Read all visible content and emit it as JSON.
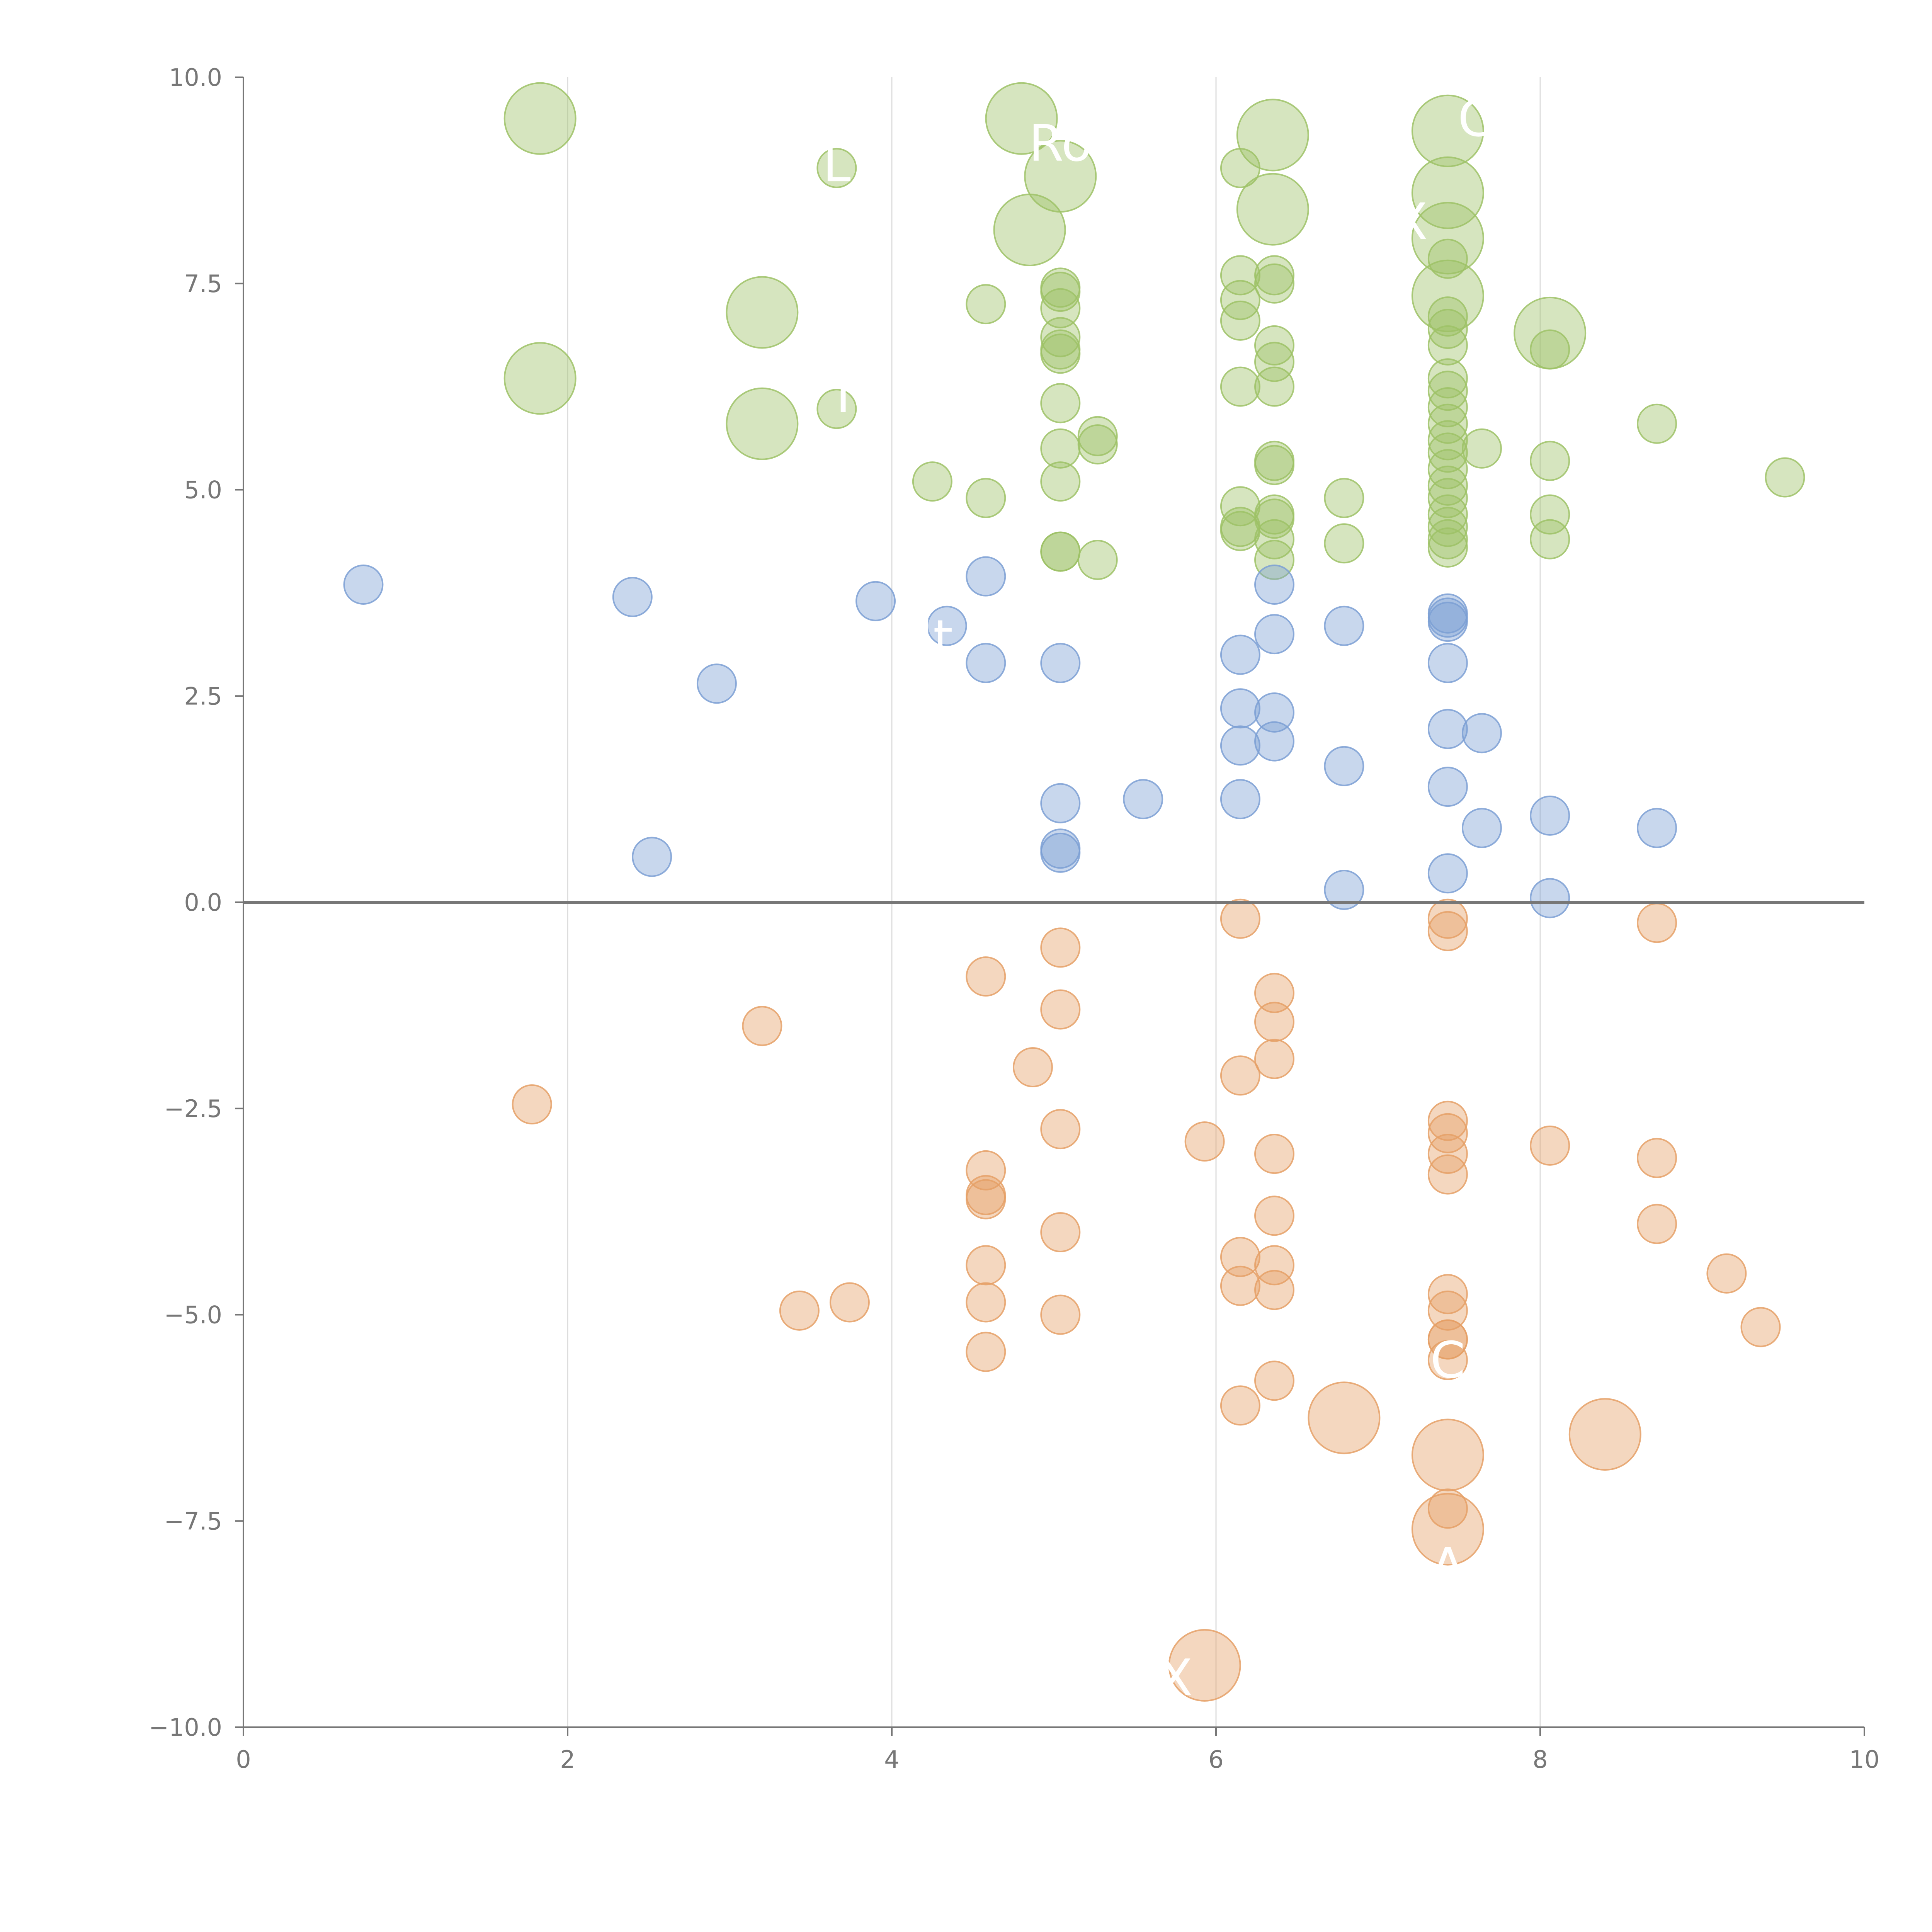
{
  "chart_data": {
    "type": "scatter",
    "title": "",
    "xlabel": "",
    "ylabel": "",
    "xlim": [
      0,
      10
    ],
    "ylim": [
      -10,
      10
    ],
    "x_ticks": [
      0,
      2,
      4,
      6,
      8,
      10
    ],
    "y_ticks": [
      -10,
      -7.5,
      -5,
      -2.5,
      0,
      2.5,
      5,
      7.5,
      10
    ],
    "x_tick_labels": [
      "0",
      "2",
      "4",
      "6",
      "8",
      "10"
    ],
    "y_tick_labels": [
      "−10.0",
      "−7.5",
      "−5.0",
      "−2.5",
      "0.0",
      "2.5",
      "5.0",
      "7.5",
      "10.0"
    ],
    "vertical_grid_x": [
      2,
      4,
      6,
      8
    ],
    "zero_line_y": 0,
    "colors": {
      "green": "#9dc266",
      "blue": "#7b9fd3",
      "orange": "#e5a066",
      "axis": "#777777",
      "grid": "#dddddd"
    },
    "series": [
      {
        "name": "green",
        "color": "#9dc266",
        "points": [
          [
            1.83,
            9.5,
            3
          ],
          [
            4.8,
            9.5,
            3
          ],
          [
            6.35,
            9.3,
            3
          ],
          [
            7.43,
            9.35,
            3
          ],
          [
            3.66,
            8.9,
            1
          ],
          [
            5.04,
            8.8,
            3
          ],
          [
            6.15,
            8.9,
            1
          ],
          [
            7.43,
            8.6,
            3
          ],
          [
            4.85,
            8.15,
            3
          ],
          [
            6.35,
            8.4,
            3
          ],
          [
            7.43,
            8.05,
            3
          ],
          [
            7.43,
            7.8,
            1
          ],
          [
            3.2,
            7.15,
            3
          ],
          [
            4.58,
            7.25,
            1
          ],
          [
            5.04,
            7.45,
            1
          ],
          [
            5.04,
            7.4,
            1
          ],
          [
            5.04,
            7.2,
            1
          ],
          [
            6.15,
            7.6,
            1
          ],
          [
            6.15,
            7.3,
            1
          ],
          [
            6.15,
            7.05,
            1
          ],
          [
            6.36,
            7.6,
            1
          ],
          [
            6.36,
            7.5,
            1
          ],
          [
            7.43,
            7.35,
            3
          ],
          [
            7.43,
            7.1,
            1
          ],
          [
            7.43,
            6.95,
            1
          ],
          [
            7.43,
            6.75,
            1
          ],
          [
            8.06,
            6.9,
            3
          ],
          [
            8.06,
            6.7,
            1
          ],
          [
            1.83,
            6.35,
            3
          ],
          [
            3.66,
            5.98,
            1
          ],
          [
            5.04,
            6.85,
            1
          ],
          [
            5.04,
            6.7,
            1
          ],
          [
            5.04,
            6.65,
            1
          ],
          [
            6.36,
            6.75,
            1
          ],
          [
            6.36,
            6.55,
            1
          ],
          [
            6.36,
            6.25,
            1
          ],
          [
            6.15,
            6.25,
            1
          ],
          [
            3.2,
            5.8,
            3
          ],
          [
            5.04,
            6.05,
            1
          ],
          [
            5.27,
            5.65,
            1
          ],
          [
            5.27,
            5.55,
            1
          ],
          [
            5.04,
            5.5,
            1
          ],
          [
            7.43,
            6.35,
            1
          ],
          [
            7.43,
            6.2,
            1
          ],
          [
            7.43,
            6.0,
            1
          ],
          [
            7.43,
            5.8,
            1
          ],
          [
            7.43,
            5.6,
            1
          ],
          [
            7.43,
            5.45,
            1
          ],
          [
            7.43,
            5.25,
            1
          ],
          [
            7.43,
            5.05,
            1
          ],
          [
            7.43,
            4.9,
            1
          ],
          [
            7.43,
            4.7,
            1
          ],
          [
            7.43,
            4.55,
            1
          ],
          [
            7.43,
            4.4,
            1
          ],
          [
            7.43,
            4.3,
            1
          ],
          [
            7.64,
            5.5,
            1
          ],
          [
            8.06,
            5.35,
            1
          ],
          [
            8.06,
            4.7,
            1
          ],
          [
            8.06,
            4.4,
            1
          ],
          [
            8.72,
            5.8,
            1
          ],
          [
            9.51,
            5.15,
            1
          ],
          [
            4.25,
            5.1,
            1
          ],
          [
            4.58,
            4.9,
            1
          ],
          [
            5.04,
            5.1,
            1
          ],
          [
            5.04,
            4.25,
            1
          ],
          [
            5.04,
            4.25,
            1
          ],
          [
            5.27,
            4.15,
            1
          ],
          [
            6.15,
            4.8,
            1
          ],
          [
            6.15,
            4.55,
            1
          ],
          [
            6.15,
            4.5,
            1
          ],
          [
            6.36,
            5.35,
            1
          ],
          [
            6.36,
            5.3,
            1
          ],
          [
            6.36,
            4.7,
            1
          ],
          [
            6.36,
            4.65,
            1
          ],
          [
            6.36,
            4.4,
            1
          ],
          [
            6.36,
            4.15,
            1
          ],
          [
            6.79,
            4.9,
            1
          ],
          [
            6.79,
            4.35,
            1
          ]
        ]
      },
      {
        "name": "blue",
        "color": "#7b9fd3",
        "points": [
          [
            0.74,
            3.85,
            1
          ],
          [
            2.4,
            3.7,
            1
          ],
          [
            3.9,
            3.65,
            1
          ],
          [
            4.58,
            3.95,
            1
          ],
          [
            4.34,
            3.35,
            1
          ],
          [
            4.58,
            2.9,
            1
          ],
          [
            5.04,
            2.9,
            1
          ],
          [
            2.92,
            2.65,
            1
          ],
          [
            6.15,
            3.0,
            1
          ],
          [
            6.36,
            3.85,
            1
          ],
          [
            6.36,
            3.25,
            1
          ],
          [
            6.79,
            3.35,
            1
          ],
          [
            7.43,
            3.5,
            1
          ],
          [
            7.43,
            3.45,
            1
          ],
          [
            7.43,
            3.4,
            1
          ],
          [
            7.43,
            2.9,
            1
          ],
          [
            6.15,
            2.35,
            1
          ],
          [
            6.36,
            2.3,
            1
          ],
          [
            6.15,
            1.9,
            1
          ],
          [
            6.36,
            1.95,
            1
          ],
          [
            7.43,
            2.1,
            1
          ],
          [
            7.64,
            2.05,
            1
          ],
          [
            6.79,
            1.65,
            1
          ],
          [
            5.04,
            1.2,
            1
          ],
          [
            5.55,
            1.25,
            1
          ],
          [
            6.15,
            1.25,
            1
          ],
          [
            7.43,
            1.4,
            1
          ],
          [
            7.64,
            0.9,
            1
          ],
          [
            8.06,
            1.05,
            1
          ],
          [
            8.72,
            0.9,
            1
          ],
          [
            2.52,
            0.55,
            1
          ],
          [
            5.04,
            0.65,
            1
          ],
          [
            5.04,
            0.6,
            1
          ],
          [
            7.43,
            0.35,
            1
          ],
          [
            6.79,
            0.15,
            1
          ],
          [
            8.06,
            0.05,
            1
          ]
        ]
      },
      {
        "name": "orange",
        "color": "#e5a066",
        "points": [
          [
            6.15,
            -0.2,
            1
          ],
          [
            7.43,
            -0.2,
            1
          ],
          [
            7.43,
            -0.35,
            1
          ],
          [
            8.72,
            -0.25,
            1
          ],
          [
            5.04,
            -0.55,
            1
          ],
          [
            4.58,
            -0.9,
            1
          ],
          [
            6.36,
            -1.1,
            1
          ],
          [
            3.2,
            -1.5,
            1
          ],
          [
            5.04,
            -1.3,
            1
          ],
          [
            6.36,
            -1.45,
            1
          ],
          [
            4.87,
            -2.0,
            1
          ],
          [
            6.15,
            -2.1,
            1
          ],
          [
            6.36,
            -1.9,
            1
          ],
          [
            1.78,
            -2.45,
            1
          ],
          [
            5.04,
            -2.75,
            1
          ],
          [
            5.93,
            -2.9,
            1
          ],
          [
            6.36,
            -3.05,
            1
          ],
          [
            7.43,
            -2.65,
            1
          ],
          [
            7.43,
            -2.8,
            1
          ],
          [
            7.43,
            -3.05,
            1
          ],
          [
            7.43,
            -3.3,
            1
          ],
          [
            8.06,
            -2.95,
            1
          ],
          [
            8.72,
            -3.1,
            1
          ],
          [
            4.58,
            -3.25,
            1
          ],
          [
            4.58,
            -3.55,
            1
          ],
          [
            4.58,
            -3.6,
            1
          ],
          [
            6.36,
            -3.8,
            1
          ],
          [
            5.04,
            -4.0,
            1
          ],
          [
            8.72,
            -3.9,
            1
          ],
          [
            4.58,
            -4.4,
            1
          ],
          [
            6.15,
            -4.3,
            1
          ],
          [
            6.36,
            -4.4,
            1
          ],
          [
            6.15,
            -4.65,
            1
          ],
          [
            6.36,
            -4.7,
            1
          ],
          [
            7.43,
            -4.75,
            1
          ],
          [
            7.43,
            -4.95,
            1
          ],
          [
            9.15,
            -4.5,
            1
          ],
          [
            3.43,
            -4.95,
            1
          ],
          [
            3.74,
            -4.85,
            1
          ],
          [
            4.58,
            -4.85,
            1
          ],
          [
            5.04,
            -5.0,
            1
          ],
          [
            9.36,
            -5.15,
            1
          ],
          [
            7.43,
            -5.3,
            1
          ],
          [
            7.43,
            -5.3,
            1
          ],
          [
            7.43,
            -5.55,
            1
          ],
          [
            4.58,
            -5.45,
            1
          ],
          [
            6.36,
            -5.8,
            1
          ],
          [
            6.15,
            -6.1,
            1
          ],
          [
            6.79,
            -6.25,
            3
          ],
          [
            7.43,
            -6.7,
            3
          ],
          [
            8.4,
            -6.45,
            3
          ],
          [
            7.43,
            -7.35,
            1
          ],
          [
            7.43,
            -7.6,
            3
          ],
          [
            5.93,
            -9.25,
            3
          ]
        ]
      }
    ],
    "labels": [
      {
        "text": "L",
        "x": 3.66,
        "y": 8.95
      },
      {
        "text": "Ro",
        "x": 5.04,
        "y": 9.2
      },
      {
        "text": "C",
        "x": 7.6,
        "y": 9.5
      },
      {
        "text": "X",
        "x": 7.2,
        "y": 8.25
      },
      {
        "text": "I",
        "x": 3.7,
        "y": 6.15
      },
      {
        "text": "Nt",
        "x": 4.2,
        "y": 3.2
      },
      {
        "text": "C",
        "x": 7.43,
        "y": -5.55
      },
      {
        "text": "A",
        "x": 7.43,
        "y": -8.05
      },
      {
        "text": "X",
        "x": 5.75,
        "y": -9.4
      }
    ]
  }
}
